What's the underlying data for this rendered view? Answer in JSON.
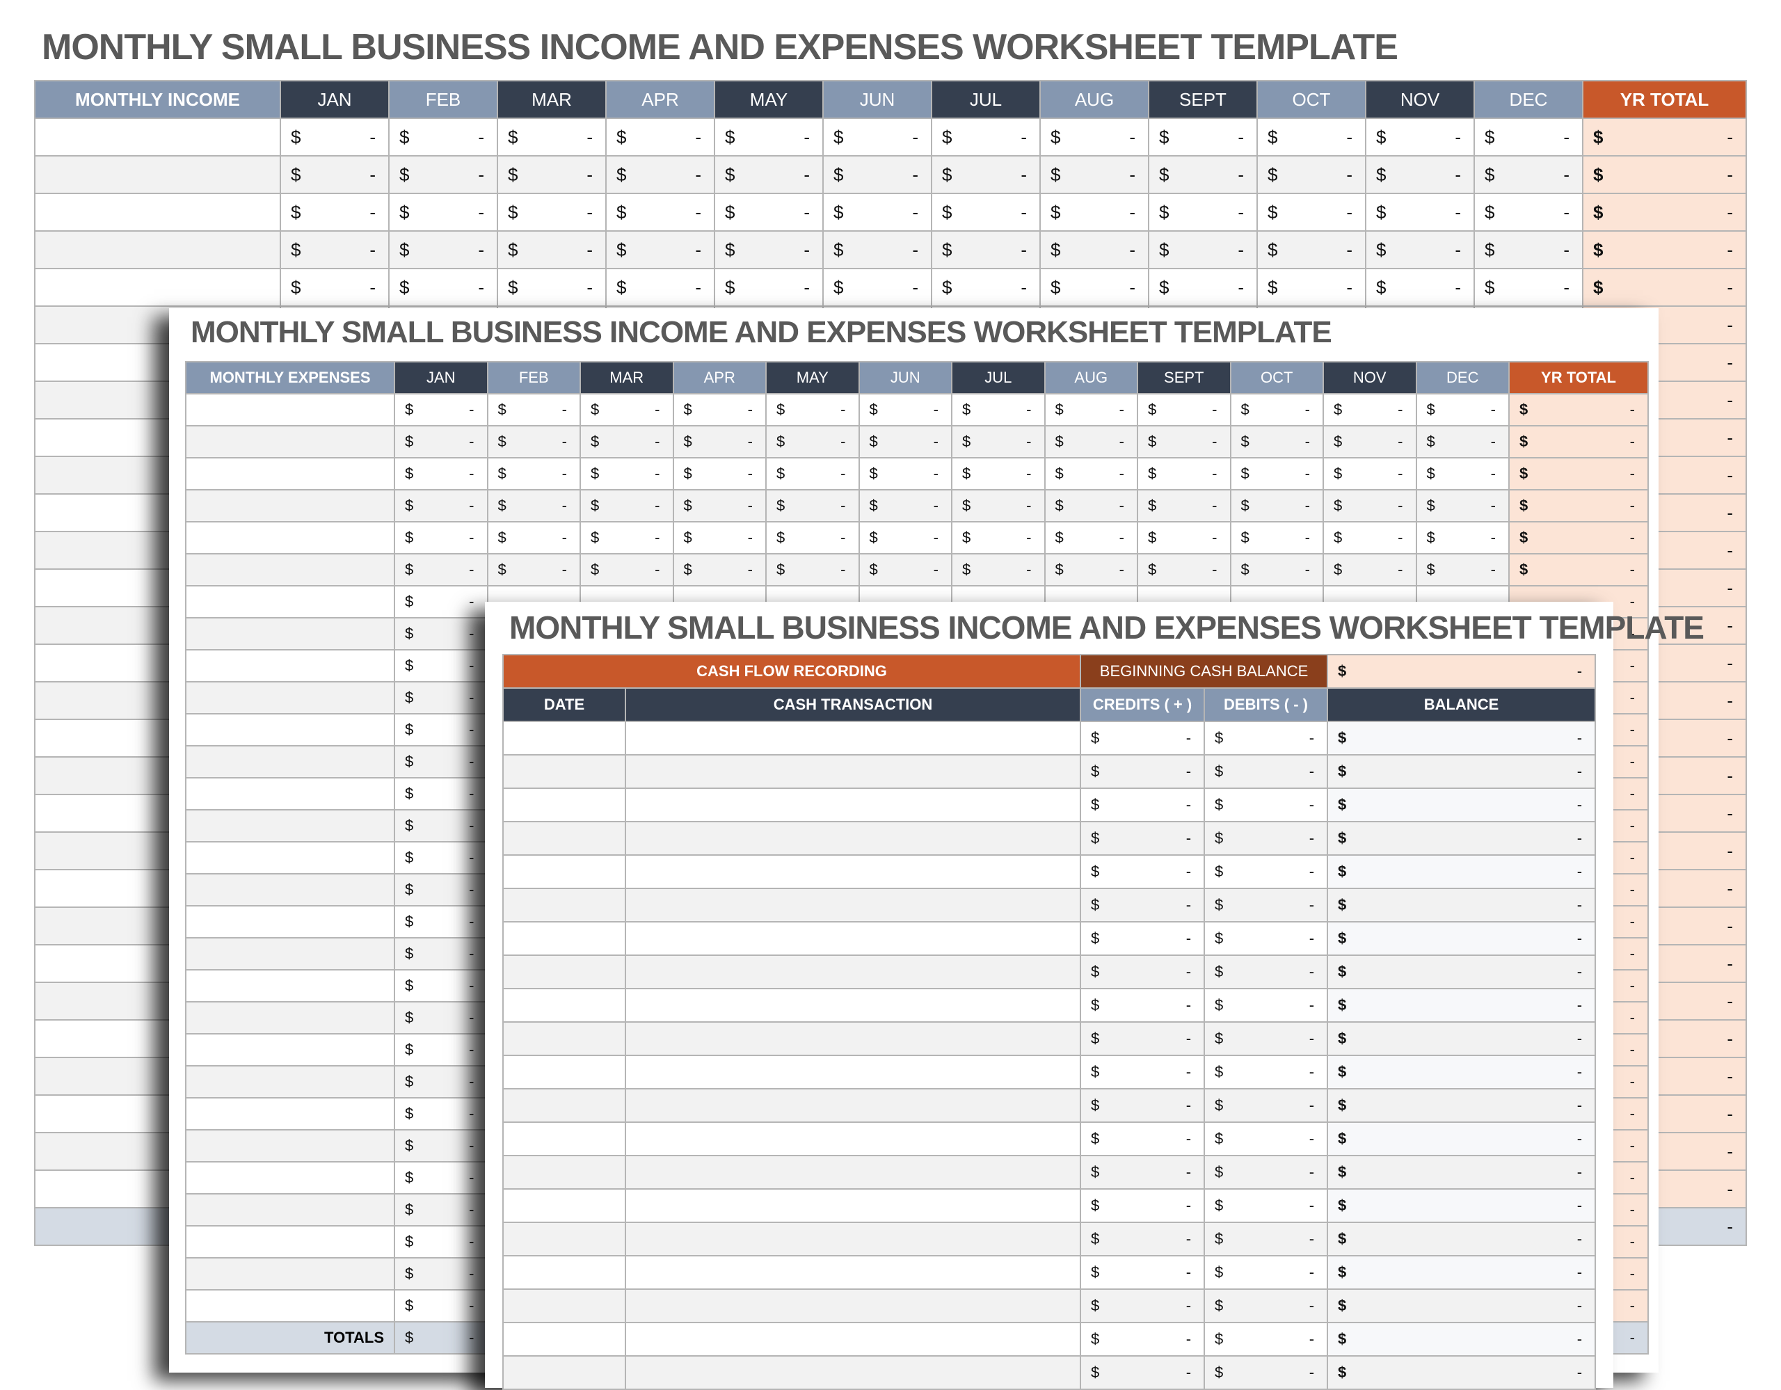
{
  "common": {
    "currency_symbol": "$",
    "empty_value": "-"
  },
  "colors": {
    "navy": "#353f4f",
    "slate": "#8597b0",
    "orange": "#c8582a",
    "brown": "#8a3f1c",
    "peach": "#fce4d6",
    "totals": "#d4dbe4"
  },
  "income_sheet": {
    "title": "MONTHLY SMALL BUSINESS INCOME AND EXPENSES WORKSHEET TEMPLATE",
    "label_header": "MONTHLY INCOME",
    "months": [
      "JAN",
      "FEB",
      "MAR",
      "APR",
      "MAY",
      "JUN",
      "JUL",
      "AUG",
      "SEPT",
      "OCT",
      "NOV",
      "DEC"
    ],
    "total_header": "YR TOTAL"
  },
  "expenses_sheet": {
    "title": "MONTHLY SMALL BUSINESS INCOME AND EXPENSES WORKSHEET TEMPLATE",
    "label_header": "MONTHLY EXPENSES",
    "months": [
      "JAN",
      "FEB",
      "MAR",
      "APR",
      "MAY",
      "JUN",
      "JUL",
      "AUG",
      "SEPT",
      "OCT",
      "NOV",
      "DEC"
    ],
    "total_header": "YR TOTAL",
    "totals_label": "TOTALS"
  },
  "cashflow_sheet": {
    "title": "MONTHLY SMALL BUSINESS INCOME AND EXPENSES WORKSHEET TEMPLATE",
    "section_label": "CASH FLOW RECORDING",
    "beginning_balance_label": "BEGINNING CASH BALANCE",
    "columns": {
      "date": "DATE",
      "transaction": "CASH TRANSACTION",
      "credits": "CREDITS ( + )",
      "debits": "DEBITS ( - )",
      "balance": "BALANCE"
    }
  }
}
